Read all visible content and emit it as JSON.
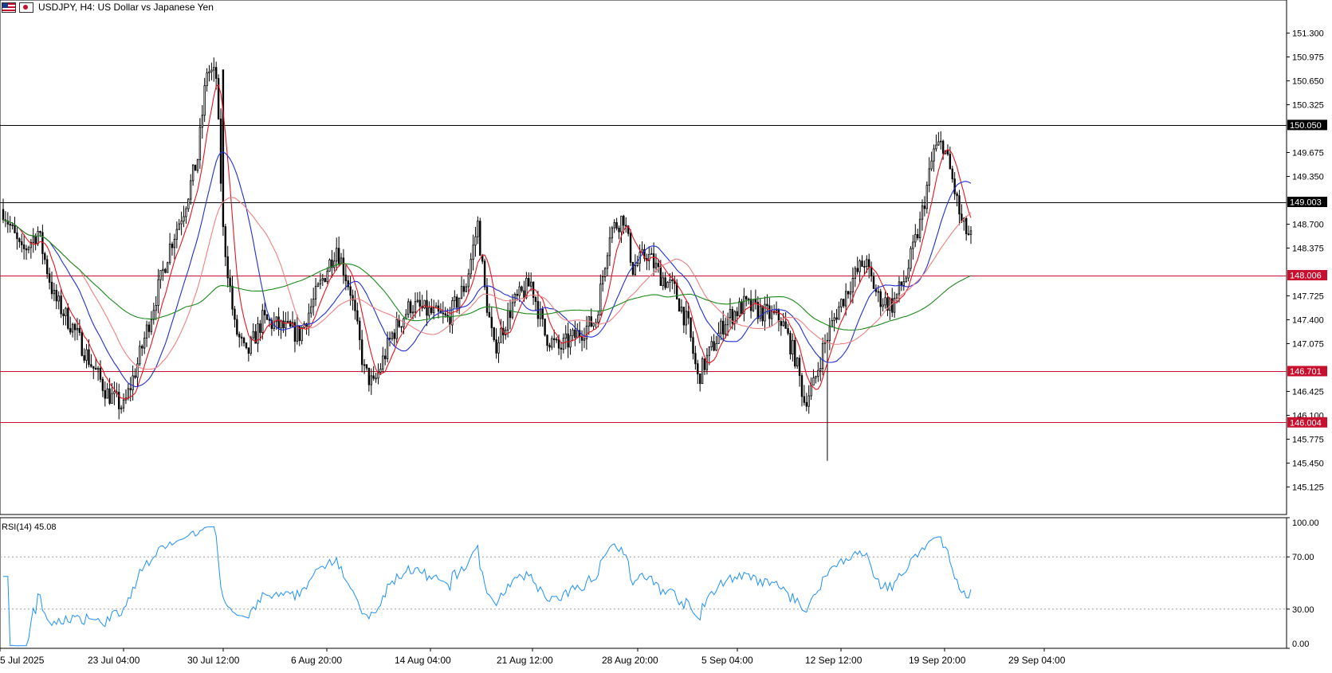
{
  "header": {
    "symbol": "USDJPY",
    "timeframe": "H4",
    "description": "US Dollar vs Japanese Yen",
    "title_text": "USDJPY, H4:  US Dollar vs Japanese Yen"
  },
  "colors": {
    "candle": "#000000",
    "ma_fast": "#e8141e",
    "ma_mid": "#1f2fd6",
    "ma_slow_light": "#f08080",
    "ma_long": "#1a8a1a",
    "level_resistance": "#000000",
    "level_support": "#c8102e",
    "rsi_line": "#1e90ff",
    "grid_dotted": "#a0a0a0"
  },
  "chart_data": {
    "type": "candlestick",
    "symbol": "USDJPY",
    "timeframe": "H4",
    "y_axis": {
      "ticks": [
        "151.300",
        "150.975",
        "150.650",
        "150.325",
        "150.050",
        "149.675",
        "149.350",
        "149.003",
        "148.700",
        "148.375",
        "148.006",
        "147.725",
        "147.400",
        "147.075",
        "146.701",
        "146.425",
        "146.100",
        "146.004",
        "145.775",
        "145.450",
        "145.125"
      ],
      "ylim": [
        144.75,
        151.75
      ]
    },
    "x_axis": {
      "ticks": [
        "5 Jul 2025",
        "23 Jul 04:00",
        "30 Jul 12:00",
        "6 Aug 20:00",
        "14 Aug 04:00",
        "21 Aug 12:00",
        "28 Aug 20:00",
        "5 Sep 04:00",
        "12 Sep 12:00",
        "19 Sep 20:00",
        "29 Sep 04:00"
      ]
    },
    "horizontal_levels": [
      {
        "price": 150.05,
        "label": "150.050",
        "style": "black"
      },
      {
        "price": 149.003,
        "label": "149.003",
        "style": "black"
      },
      {
        "price": 148.006,
        "label": "148.006",
        "style": "red"
      },
      {
        "price": 146.701,
        "label": "146.701",
        "style": "red"
      },
      {
        "price": 146.004,
        "label": "146.004",
        "style": "red"
      }
    ],
    "price_anchors": [
      [
        0,
        148.9
      ],
      [
        8,
        148.3
      ],
      [
        15,
        148.6
      ],
      [
        22,
        147.7
      ],
      [
        30,
        147.3
      ],
      [
        38,
        146.8
      ],
      [
        45,
        146.4
      ],
      [
        52,
        146.2
      ],
      [
        58,
        146.8
      ],
      [
        65,
        147.6
      ],
      [
        72,
        148.4
      ],
      [
        78,
        148.9
      ],
      [
        84,
        149.6
      ],
      [
        88,
        150.8
      ],
      [
        92,
        150.7
      ],
      [
        95,
        148.6
      ],
      [
        100,
        147.3
      ],
      [
        105,
        146.9
      ],
      [
        112,
        147.4
      ],
      [
        120,
        147.3
      ],
      [
        128,
        147.2
      ],
      [
        136,
        147.8
      ],
      [
        144,
        148.4
      ],
      [
        150,
        147.8
      ],
      [
        156,
        146.7
      ],
      [
        160,
        146.5
      ],
      [
        168,
        147.2
      ],
      [
        176,
        147.6
      ],
      [
        184,
        147.5
      ],
      [
        192,
        147.4
      ],
      [
        200,
        147.9
      ],
      [
        205,
        148.7
      ],
      [
        208,
        147.8
      ],
      [
        212,
        147.0
      ],
      [
        220,
        147.6
      ],
      [
        228,
        147.9
      ],
      [
        234,
        147.2
      ],
      [
        240,
        147.0
      ],
      [
        248,
        147.2
      ],
      [
        256,
        147.4
      ],
      [
        262,
        148.6
      ],
      [
        268,
        148.8
      ],
      [
        272,
        148.1
      ],
      [
        278,
        148.3
      ],
      [
        284,
        148.0
      ],
      [
        290,
        147.8
      ],
      [
        296,
        147.3
      ],
      [
        300,
        146.6
      ],
      [
        306,
        147.0
      ],
      [
        312,
        147.4
      ],
      [
        320,
        147.6
      ],
      [
        328,
        147.5
      ],
      [
        336,
        147.4
      ],
      [
        342,
        146.9
      ],
      [
        346,
        146.3
      ],
      [
        350,
        146.5
      ],
      [
        354,
        147.0
      ],
      [
        360,
        147.5
      ],
      [
        366,
        147.9
      ],
      [
        372,
        148.2
      ],
      [
        378,
        147.7
      ],
      [
        384,
        147.6
      ],
      [
        390,
        148.0
      ],
      [
        396,
        148.7
      ],
      [
        402,
        149.7
      ],
      [
        406,
        149.8
      ],
      [
        410,
        149.3
      ],
      [
        414,
        148.7
      ],
      [
        418,
        148.5
      ]
    ],
    "moving_averages": [
      {
        "period_hint": "fast",
        "color": "#e8141e"
      },
      {
        "period_hint": "mid",
        "color": "#1f2fd6"
      },
      {
        "period_hint": "slow",
        "color": "#f08080"
      },
      {
        "period_hint": "long",
        "color": "#1a8a1a"
      }
    ],
    "rsi": {
      "label": "RSI(14) 45.08",
      "period": 14,
      "last_value": 45.08,
      "ticks": [
        "100.00",
        "70.00",
        "30.00",
        "0.00"
      ],
      "levels": [
        70,
        30
      ],
      "ylim": [
        0,
        100
      ]
    }
  }
}
